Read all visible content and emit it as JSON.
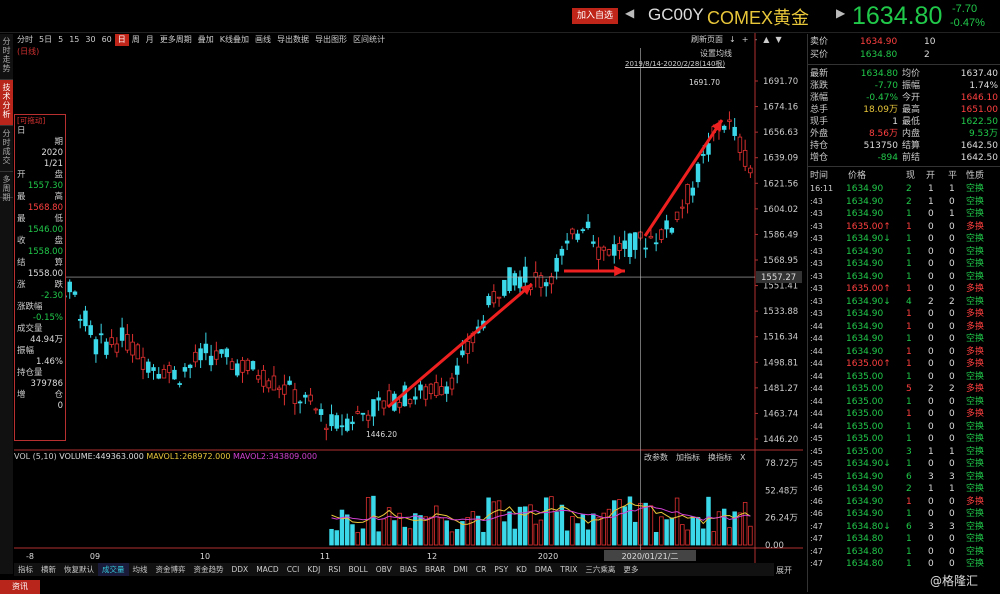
{
  "header": {
    "add_watch": "加入自选",
    "nav_left": "◀",
    "nav_right": "▶",
    "code": "GC00Y",
    "name": "COMEX黄金",
    "last": "1634.80",
    "chg": "-7.70",
    "chg_pct": "-0.47%"
  },
  "left_tabs": [
    "分时走势",
    "技术分析",
    "分时成交",
    "多周期"
  ],
  "period_items": [
    "分时",
    "5日",
    "5",
    "15",
    "30",
    "60",
    "日",
    "周",
    "月",
    "更多周期",
    "叠加",
    "K线叠加",
    "画线",
    "导出数据",
    "导出图形",
    "区间统计"
  ],
  "period_active": "日",
  "top_right_links": [
    "刷新页面",
    "↓",
    "+",
    "-",
    "▲",
    "▼"
  ],
  "setting_label": "设置均线",
  "date_range": "2019/8/14-2020/2/28(140根)",
  "fuquan": "(日线)",
  "infobox": {
    "title": "[可拖动]",
    "rows": [
      {
        "l": "日",
        "v": "",
        "lab": true
      },
      {
        "l": "",
        "v": "期",
        "lab": true
      },
      {
        "l": "",
        "v": "2020",
        "c": "#ddd"
      },
      {
        "l": "",
        "v": "1/21",
        "c": "#ddd"
      },
      {
        "l": "开",
        "v": "盘",
        "lab": true
      },
      {
        "l": "",
        "v": "1557.30",
        "c": "#21c94a"
      },
      {
        "l": "最",
        "v": "高",
        "lab": true
      },
      {
        "l": "",
        "v": "1568.80",
        "c": "#ff4040"
      },
      {
        "l": "最",
        "v": "低",
        "lab": true
      },
      {
        "l": "",
        "v": "1546.00",
        "c": "#21c94a"
      },
      {
        "l": "收",
        "v": "盘",
        "lab": true
      },
      {
        "l": "",
        "v": "1558.00",
        "c": "#21c94a"
      },
      {
        "l": "结",
        "v": "算",
        "lab": true
      },
      {
        "l": "",
        "v": "1558.00",
        "c": "#ddd"
      },
      {
        "l": "涨",
        "v": "跌",
        "lab": true
      },
      {
        "l": "",
        "v": "-2.30",
        "c": "#21c94a"
      },
      {
        "l": "涨跌幅",
        "v": "",
        "lab": true
      },
      {
        "l": "",
        "v": "-0.15%",
        "c": "#21c94a"
      },
      {
        "l": "成交量",
        "v": "",
        "lab": true
      },
      {
        "l": "",
        "v": "44.94万",
        "c": "#ddd"
      },
      {
        "l": "振幅",
        "v": "",
        "lab": true
      },
      {
        "l": "",
        "v": "1.46%",
        "c": "#ddd"
      },
      {
        "l": "持仓量",
        "v": "",
        "lab": true
      },
      {
        "l": "",
        "v": "379786",
        "c": "#ddd"
      },
      {
        "l": "增",
        "v": "仓",
        "lab": true
      },
      {
        "l": "",
        "v": "0",
        "c": "#ddd"
      }
    ]
  },
  "price_axis": [
    "1691.70",
    "1674.16",
    "1656.63",
    "1639.09",
    "1621.56",
    "1604.02",
    "1586.49",
    "1568.95",
    "1551.41",
    "1533.88",
    "1516.34",
    "1498.81",
    "1481.27",
    "1463.74",
    "1446.20"
  ],
  "cross_price": "1557.27",
  "max_label": "1691.70",
  "min_label": "1446.20",
  "vol_axis": [
    "78.72万",
    "52.48万",
    "26.24万",
    "0.00"
  ],
  "x_labels": [
    "-8",
    "09",
    "10",
    "11",
    "12",
    "2020",
    "2020/01/21/二"
  ],
  "vol_info": {
    "title": "VOL (5,10)",
    "vol": "VOLUME:449363.000",
    "mavol1": "MAVOL1:268972.000",
    "mavol2": "MAVOL2:343809.000",
    "tools": [
      "改参数",
      "加指标",
      "换指标",
      "X"
    ]
  },
  "bottom_tabs": [
    "指标",
    "横新",
    "恢复默认",
    "成交量",
    "均线",
    "资金博弈",
    "资金趋势",
    "DDX",
    "MACD",
    "CCI",
    "KDJ",
    "RSI",
    "BOLL",
    "OBV",
    "BIAS",
    "BRAR",
    "DMI",
    "CR",
    "PSY",
    "KD",
    "DMA",
    "TRIX",
    "三六乘离",
    "更多"
  ],
  "more": "展开",
  "zixun": "资讯",
  "watermark": "@格隆汇",
  "quote": {
    "sell": {
      "l": "卖价",
      "p": "1634.90",
      "v": "10"
    },
    "buy": {
      "l": "买价",
      "p": "1634.80",
      "v": "2"
    },
    "stats": [
      {
        "l1": "最新",
        "v1": "1634.80",
        "c1": "#21c94a",
        "l2": "均价",
        "v2": "1637.40",
        "c2": "#ddd"
      },
      {
        "l1": "涨跌",
        "v1": "-7.70",
        "c1": "#21c94a",
        "l2": "振幅",
        "v2": "1.74%",
        "c2": "#ddd"
      },
      {
        "l1": "涨幅",
        "v1": "-0.47%",
        "c1": "#21c94a",
        "l2": "今开",
        "v2": "1646.10",
        "c2": "#ff4040"
      },
      {
        "l1": "总手",
        "v1": "18.09万",
        "c1": "#e8c63a",
        "l2": "最高",
        "v2": "1651.00",
        "c2": "#ff4040"
      },
      {
        "l1": "现手",
        "v1": "1",
        "c1": "#ddd",
        "l2": "最低",
        "v2": "1622.50",
        "c2": "#21c94a"
      },
      {
        "l1": "外盘",
        "v1": "8.56万",
        "c1": "#ff4040",
        "l2": "内盘",
        "v2": "9.53万",
        "c2": "#21c94a"
      },
      {
        "l1": "持仓",
        "v1": "513750",
        "c1": "#ddd",
        "l2": "结算",
        "v2": "1642.50",
        "c2": "#ddd"
      },
      {
        "l1": "增仓",
        "v1": "-894",
        "c1": "#21c94a",
        "l2": "前结",
        "v2": "1642.50",
        "c2": "#ddd"
      }
    ],
    "tick_head": [
      "时间",
      "价格",
      "现",
      "开",
      "平",
      "性质"
    ],
    "ticks": [
      [
        "16:11",
        "1634.90",
        "2",
        "1",
        "1",
        "空换",
        "g"
      ],
      [
        ":43",
        "1634.90",
        "2",
        "1",
        "0",
        "空换",
        "g"
      ],
      [
        ":43",
        "1634.90",
        "1",
        "0",
        "1",
        "空换",
        "g"
      ],
      [
        ":43",
        "1635.00↑",
        "1",
        "0",
        "0",
        "多换",
        "r"
      ],
      [
        ":43",
        "1634.90↓",
        "1",
        "0",
        "0",
        "空换",
        "g"
      ],
      [
        ":43",
        "1634.90",
        "1",
        "0",
        "0",
        "空换",
        "g"
      ],
      [
        ":43",
        "1634.90",
        "1",
        "0",
        "0",
        "空换",
        "g"
      ],
      [
        ":43",
        "1634.90",
        "1",
        "0",
        "0",
        "空换",
        "g"
      ],
      [
        ":43",
        "1635.00↑",
        "1",
        "0",
        "0",
        "多换",
        "r"
      ],
      [
        ":43",
        "1634.90↓",
        "4",
        "2",
        "2",
        "空换",
        "g"
      ],
      [
        ":43",
        "1634.90",
        "1",
        "0",
        "0",
        "多换",
        "r"
      ],
      [
        ":44",
        "1634.90",
        "1",
        "0",
        "0",
        "多换",
        "r"
      ],
      [
        ":44",
        "1634.90",
        "1",
        "0",
        "0",
        "空换",
        "g"
      ],
      [
        ":44",
        "1634.90",
        "1",
        "0",
        "0",
        "多换",
        "r"
      ],
      [
        ":44",
        "1635.00↑",
        "1",
        "0",
        "0",
        "多换",
        "r"
      ],
      [
        ":44",
        "1635.00",
        "1",
        "0",
        "0",
        "空换",
        "g"
      ],
      [
        ":44",
        "1635.00",
        "5",
        "2",
        "2",
        "多换",
        "r"
      ],
      [
        ":44",
        "1635.00",
        "1",
        "0",
        "0",
        "空换",
        "g"
      ],
      [
        ":44",
        "1635.00",
        "1",
        "0",
        "0",
        "多换",
        "r"
      ],
      [
        ":44",
        "1635.00",
        "1",
        "0",
        "0",
        "空换",
        "g"
      ],
      [
        ":45",
        "1635.00",
        "1",
        "0",
        "0",
        "空换",
        "g"
      ],
      [
        ":45",
        "1635.00",
        "3",
        "1",
        "1",
        "空换",
        "g"
      ],
      [
        ":45",
        "1634.90↓",
        "1",
        "0",
        "0",
        "空换",
        "g"
      ],
      [
        ":45",
        "1634.90",
        "6",
        "3",
        "3",
        "空换",
        "g"
      ],
      [
        ":46",
        "1634.90",
        "2",
        "1",
        "1",
        "空换",
        "g"
      ],
      [
        ":46",
        "1634.90",
        "1",
        "0",
        "0",
        "多换",
        "r"
      ],
      [
        ":46",
        "1634.90",
        "1",
        "0",
        "0",
        "空换",
        "g"
      ],
      [
        ":47",
        "1634.80↓",
        "6",
        "3",
        "3",
        "空换",
        "g"
      ],
      [
        ":47",
        "1634.80",
        "1",
        "0",
        "0",
        "空换",
        "g"
      ],
      [
        ":47",
        "1634.80",
        "1",
        "0",
        "0",
        "空换",
        "g"
      ],
      [
        ":47",
        "1634.80",
        "1",
        "0",
        "0",
        "空换",
        "g"
      ]
    ]
  }
}
